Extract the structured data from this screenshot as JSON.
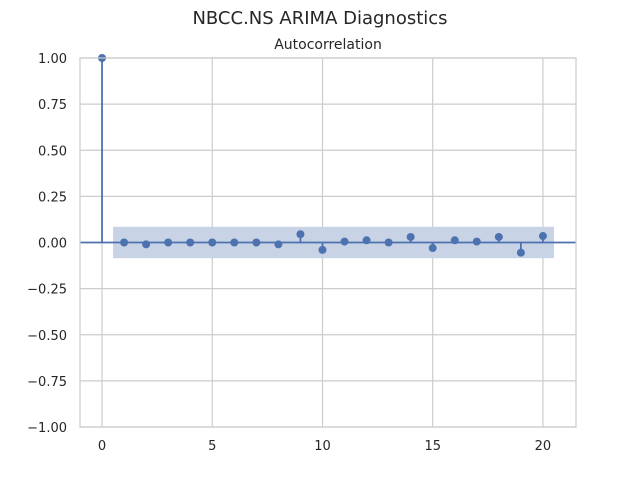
{
  "figure": {
    "suptitle": "NBCC.NS ARIMA Diagnostics"
  },
  "chart_data": {
    "type": "stem",
    "title": "Autocorrelation",
    "xlabel": "",
    "ylabel": "",
    "xlim": [
      -1,
      21.5
    ],
    "ylim": [
      -1.0,
      1.0
    ],
    "grid": true,
    "xticks": [
      0,
      5,
      10,
      15,
      20
    ],
    "xtick_labels": [
      "0",
      "5",
      "10",
      "15",
      "20"
    ],
    "yticks": [
      1.0,
      0.75,
      0.5,
      0.25,
      0.0,
      -0.25,
      -0.5,
      -0.75,
      -1.0
    ],
    "ytick_labels": [
      "1.00",
      "0.75",
      "0.50",
      "0.25",
      "0.00",
      "−0.25",
      "−0.50",
      "−0.75",
      "−1.00"
    ],
    "lags": [
      0,
      1,
      2,
      3,
      4,
      5,
      6,
      7,
      8,
      9,
      10,
      11,
      12,
      13,
      14,
      15,
      16,
      17,
      18,
      19,
      20
    ],
    "values": [
      1.0,
      0.0,
      -0.01,
      0.0,
      0.0,
      0.0,
      0.0,
      0.0,
      -0.01,
      0.045,
      -0.04,
      0.005,
      0.012,
      0.0,
      0.03,
      -0.03,
      0.012,
      0.005,
      0.03,
      -0.055,
      0.035
    ],
    "confidence_band": {
      "x_range": [
        0.5,
        20.5
      ],
      "lower": -0.085,
      "upper": 0.085
    },
    "colors": {
      "marker": "#4c72b0",
      "band": "#c9d3e6",
      "grid": "#cccccc",
      "zero_line": "#4c72b0"
    }
  }
}
